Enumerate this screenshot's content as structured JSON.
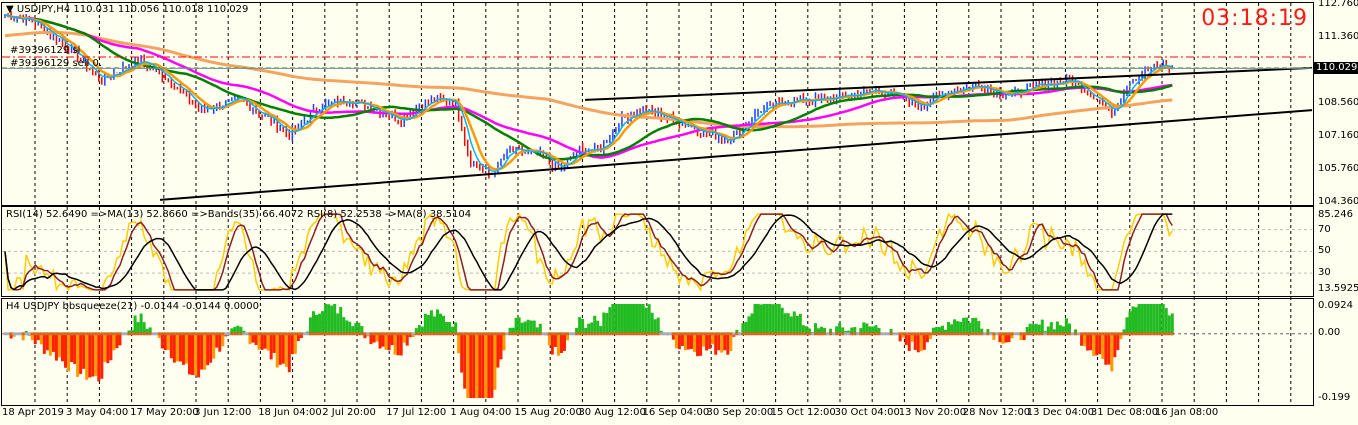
{
  "main": {
    "title": "USDJPY,H4",
    "ohlc": "110.031 110.056 110.018 110.029",
    "order_labels": [
      "#39396129 sl",
      "#39396129 sell 0."
    ],
    "clock": "03:18:19",
    "current_price": "110.029",
    "axis_labels": [
      "112.760",
      "111.360",
      "108.560",
      "107.160",
      "105.760",
      "104.360"
    ],
    "ylim": [
      104.36,
      112.76
    ]
  },
  "rsi": {
    "label": "RSI(14) 52.6490  =>MA(13) 52.8660  =>Bands(35) 66.4072  RSI(8) 52.2538  ->MA(8) 38.5104",
    "axis_labels": [
      "85.246",
      "70",
      "50",
      "30",
      "13.5925"
    ],
    "ylim": [
      13.5925,
      85.246
    ],
    "levels": [
      70,
      50,
      30
    ]
  },
  "squeeze": {
    "label": "H4 USDJPY bbsqueeze(21) -0.0144 -0.0144 0.0000",
    "axis_labels": [
      "0.0924",
      "0.00",
      "-0.199"
    ],
    "ylim": [
      -0.199,
      0.0924
    ]
  },
  "time_axis": [
    "18 Apr 2019",
    "3 May 04:00",
    "17 May 20:00",
    "3 Jun 12:00",
    "18 Jun 04:00",
    "2 Jul 20:00",
    "17 Jul 12:00",
    "1 Aug 04:00",
    "15 Aug 20:00",
    "30 Aug 12:00",
    "16 Sep 04:00",
    "30 Sep 20:00",
    "15 Oct 12:00",
    "30 Oct 04:00",
    "13 Nov 20:00",
    "28 Nov 12:00",
    "13 Dec 04:00",
    "31 Dec 08:00",
    "16 Jan 08:00"
  ],
  "colors": {
    "background": "#fffff0",
    "up": "#1e40ff",
    "down": "#ff0000",
    "ma_fast": "#00b4ff",
    "ma_mid": "#008000",
    "ma_slow": "#ff00ff",
    "ma_long": "#f4a460",
    "clock": "#ff1a1a",
    "rsi": "#ffcc00",
    "rsi_ma": "#8b2020",
    "rsi_slow": "#000000"
  },
  "chart_data": {
    "type": "line",
    "x_unit": "days since 18 Apr 2019",
    "price_keypoints": [
      [
        1.2,
        112.29
      ],
      [
        7.1,
        112.08
      ],
      [
        14.3,
        111.23
      ],
      [
        23.8,
        109.54
      ],
      [
        33.3,
        110.38
      ],
      [
        40.5,
        109.54
      ],
      [
        47.6,
        108.26
      ],
      [
        57.1,
        108.69
      ],
      [
        64.3,
        107.84
      ],
      [
        69,
        107.2
      ],
      [
        76.2,
        108.47
      ],
      [
        83.3,
        108.69
      ],
      [
        90.5,
        108.26
      ],
      [
        95.2,
        107.84
      ],
      [
        102.4,
        108.69
      ],
      [
        108.3,
        108.69
      ],
      [
        111.9,
        106.14
      ],
      [
        116.7,
        105.5
      ],
      [
        121.4,
        106.57
      ],
      [
        128.6,
        106.35
      ],
      [
        133.3,
        105.72
      ],
      [
        138.1,
        106.57
      ],
      [
        142.9,
        106.57
      ],
      [
        147.6,
        107.84
      ],
      [
        152.4,
        108.26
      ],
      [
        157.1,
        108.05
      ],
      [
        166.7,
        107.41
      ],
      [
        173.8,
        106.99
      ],
      [
        181,
        108.26
      ],
      [
        188.1,
        108.69
      ],
      [
        195.2,
        108.69
      ],
      [
        202.4,
        108.9
      ],
      [
        209.5,
        109.11
      ],
      [
        219,
        108.47
      ],
      [
        226.2,
        109.11
      ],
      [
        233.3,
        109.32
      ],
      [
        240.5,
        108.9
      ],
      [
        247.6,
        109.32
      ],
      [
        254.8,
        109.54
      ],
      [
        261.9,
        108.69
      ],
      [
        264.3,
        108.05
      ],
      [
        269,
        109.54
      ],
      [
        276.2,
        110.17
      ],
      [
        279.8,
        110.03
      ]
    ],
    "trendlines": [
      {
        "from": [
          139.3,
          108.69
        ],
        "to": [
          312.4,
          110.05
        ]
      },
      {
        "from": [
          38.1,
          104.45
        ],
        "to": [
          312.4,
          108.26
        ]
      }
    ],
    "hlines": [
      {
        "price": 110.51,
        "style": "dash-dot",
        "color": "#ff0000"
      },
      {
        "price": 110.05,
        "style": "dashed",
        "color": "#33aa33"
      },
      {
        "price": 110.029,
        "style": "solid",
        "color": "#7a8a9a"
      }
    ]
  }
}
